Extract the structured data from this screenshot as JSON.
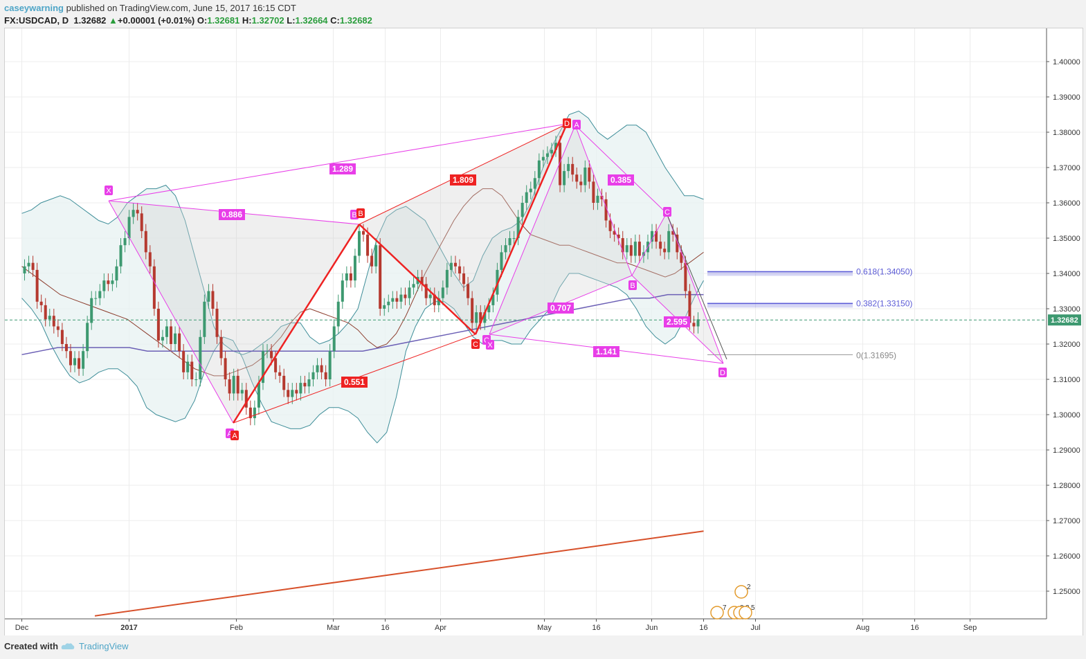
{
  "header": {
    "author": "caseywarning",
    "published": " published on TradingView.com, June 15, 2017 16:15 CDT",
    "symbol": "FX:USDCAD, D",
    "last": "1.32682",
    "change": "+0.00001 (+0.01%)",
    "o_label": "O:",
    "o": "1.32681",
    "h_label": "H:",
    "h": "1.32702",
    "l_label": "L:",
    "l": "1.32664",
    "c_label": "C:",
    "c": "1.32682"
  },
  "footer": {
    "created": "Created with",
    "brand": "TradingView"
  },
  "colors": {
    "up": "#3d9970",
    "down": "#b5392f",
    "harmonic": "#e83ee8",
    "red_pattern": "#ee2222",
    "bb": "#3d8d98",
    "bb_mid": "#8b3a2a",
    "ma_blue": "#6b5fb5",
    "ma_red": "#d7502a",
    "fib": "#5b5bd6",
    "price_tag": "#3d9970"
  },
  "chart_data": {
    "type": "candlestick",
    "x_labels": [
      "Dec",
      "2017",
      "Feb",
      "Mar",
      "16",
      "Apr",
      "May",
      "16",
      "Jun",
      "16",
      "Jul",
      "Aug",
      "16",
      "Sep"
    ],
    "x_dates": [
      "2016-12-01",
      "2017-01-01",
      "2017-02-01",
      "2017-03-01",
      "2017-03-16",
      "2017-04-01",
      "2017-05-01",
      "2017-05-16",
      "2017-06-01",
      "2017-06-16",
      "2017-07-01",
      "2017-08-01",
      "2017-08-16",
      "2017-09-01"
    ],
    "y_ticks": [
      "1.40000",
      "1.39000",
      "1.38000",
      "1.37000",
      "1.36000",
      "1.35000",
      "1.34000",
      "1.33000",
      "1.32000",
      "1.31000",
      "1.30000",
      "1.29000",
      "1.28000",
      "1.27000",
      "1.26000",
      "1.25000"
    ],
    "ylim": [
      1.2425,
      1.4115
    ],
    "current_price": "1.32682",
    "candles_close": [
      1.342,
      1.343,
      1.341,
      1.332,
      1.331,
      1.327,
      1.328,
      1.325,
      1.324,
      1.32,
      1.318,
      1.314,
      1.316,
      1.313,
      1.318,
      1.326,
      1.333,
      1.333,
      1.335,
      1.338,
      1.337,
      1.338,
      1.342,
      1.348,
      1.35,
      1.356,
      1.358,
      1.357,
      1.352,
      1.346,
      1.342,
      1.33,
      1.321,
      1.322,
      1.325,
      1.32,
      1.323,
      1.318,
      1.312,
      1.315,
      1.31,
      1.31,
      1.322,
      1.332,
      1.335,
      1.33,
      1.322,
      1.316,
      1.31,
      1.306,
      1.311,
      1.306,
      1.307,
      1.302,
      1.299,
      1.302,
      1.309,
      1.318,
      1.318,
      1.316,
      1.312,
      1.311,
      1.307,
      1.305,
      1.307,
      1.306,
      1.309,
      1.308,
      1.31,
      1.312,
      1.314,
      1.312,
      1.31,
      1.318,
      1.325,
      1.332,
      1.338,
      1.34,
      1.338,
      1.345,
      1.352,
      1.351,
      1.345,
      1.342,
      1.348,
      1.33,
      1.331,
      1.332,
      1.333,
      1.332,
      1.334,
      1.333,
      1.336,
      1.337,
      1.339,
      1.337,
      1.333,
      1.334,
      1.331,
      1.333,
      1.336,
      1.341,
      1.343,
      1.342,
      1.34,
      1.337,
      1.333,
      1.326,
      1.329,
      1.326,
      1.329,
      1.331,
      1.334,
      1.341,
      1.346,
      1.348,
      1.35,
      1.35,
      1.356,
      1.36,
      1.363,
      1.364,
      1.367,
      1.372,
      1.373,
      1.374,
      1.375,
      1.377,
      1.365,
      1.369,
      1.371,
      1.368,
      1.366,
      1.365,
      1.37,
      1.366,
      1.36,
      1.362,
      1.361,
      1.355,
      1.352,
      1.351,
      1.35,
      1.346,
      1.348,
      1.345,
      1.349,
      1.345,
      1.346,
      1.349,
      1.352,
      1.349,
      1.347,
      1.346,
      1.352,
      1.351,
      1.346,
      1.343,
      1.335,
      1.326,
      1.325,
      1.327
    ],
    "candles_open": [
      1.34,
      1.342,
      1.343,
      1.341,
      1.332,
      1.331,
      1.327,
      1.328,
      1.325,
      1.324,
      1.32,
      1.318,
      1.314,
      1.316,
      1.313,
      1.318,
      1.326,
      1.333,
      1.333,
      1.335,
      1.338,
      1.337,
      1.338,
      1.342,
      1.348,
      1.35,
      1.356,
      1.358,
      1.357,
      1.352,
      1.346,
      1.342,
      1.33,
      1.321,
      1.322,
      1.325,
      1.32,
      1.323,
      1.318,
      1.312,
      1.315,
      1.31,
      1.31,
      1.322,
      1.332,
      1.335,
      1.33,
      1.322,
      1.316,
      1.31,
      1.306,
      1.311,
      1.306,
      1.307,
      1.302,
      1.299,
      1.302,
      1.309,
      1.318,
      1.318,
      1.316,
      1.312,
      1.311,
      1.307,
      1.305,
      1.307,
      1.306,
      1.309,
      1.308,
      1.31,
      1.312,
      1.314,
      1.312,
      1.31,
      1.318,
      1.325,
      1.332,
      1.338,
      1.34,
      1.338,
      1.345,
      1.352,
      1.351,
      1.345,
      1.342,
      1.348,
      1.33,
      1.331,
      1.332,
      1.333,
      1.332,
      1.334,
      1.333,
      1.336,
      1.337,
      1.339,
      1.337,
      1.333,
      1.334,
      1.331,
      1.333,
      1.336,
      1.341,
      1.343,
      1.342,
      1.34,
      1.337,
      1.333,
      1.326,
      1.329,
      1.326,
      1.329,
      1.331,
      1.334,
      1.341,
      1.346,
      1.348,
      1.35,
      1.35,
      1.356,
      1.36,
      1.363,
      1.364,
      1.367,
      1.372,
      1.373,
      1.374,
      1.375,
      1.377,
      1.365,
      1.369,
      1.371,
      1.368,
      1.366,
      1.365,
      1.37,
      1.366,
      1.36,
      1.362,
      1.361,
      1.355,
      1.352,
      1.351,
      1.35,
      1.346,
      1.348,
      1.345,
      1.349,
      1.345,
      1.346,
      1.349,
      1.352,
      1.349,
      1.347,
      1.346,
      1.352,
      1.351,
      1.346,
      1.343,
      1.335,
      1.326,
      1.325
    ],
    "bb_upper": [
      1.357,
      1.358,
      1.36,
      1.361,
      1.362,
      1.361,
      1.359,
      1.357,
      1.355,
      1.354,
      1.356,
      1.36,
      1.362,
      1.364,
      1.364,
      1.365,
      1.362,
      1.355,
      1.345,
      1.335,
      1.325,
      1.32,
      1.318,
      1.317,
      1.318,
      1.32,
      1.322,
      1.325,
      1.326,
      1.326,
      1.322,
      1.32,
      1.321,
      1.323,
      1.326,
      1.33,
      1.34,
      1.35,
      1.356,
      1.358,
      1.359,
      1.357,
      1.355,
      1.35,
      1.345,
      1.34,
      1.336,
      1.338,
      1.345,
      1.35,
      1.352,
      1.353,
      1.355,
      1.36,
      1.368,
      1.375,
      1.38,
      1.385,
      1.386,
      1.384,
      1.38,
      1.378,
      1.38,
      1.382,
      1.382,
      1.38,
      1.375,
      1.37,
      1.366,
      1.362,
      1.362,
      1.361
    ],
    "bb_lower": [
      1.333,
      1.33,
      1.326,
      1.32,
      1.315,
      1.311,
      1.309,
      1.31,
      1.312,
      1.313,
      1.313,
      1.311,
      1.308,
      1.302,
      1.3,
      1.299,
      1.298,
      1.299,
      1.304,
      1.312,
      1.318,
      1.322,
      1.321,
      1.316,
      1.309,
      1.303,
      1.298,
      1.297,
      1.296,
      1.296,
      1.297,
      1.3,
      1.302,
      1.302,
      1.301,
      1.299,
      1.295,
      1.292,
      1.295,
      1.305,
      1.318,
      1.325,
      1.33,
      1.332,
      1.332,
      1.33,
      1.326,
      1.322,
      1.32,
      1.321,
      1.321,
      1.32,
      1.32,
      1.324,
      1.327,
      1.33,
      1.336,
      1.34,
      1.34,
      1.339,
      1.338,
      1.337,
      1.336,
      1.334,
      1.33,
      1.325,
      1.322,
      1.32,
      1.322,
      1.327,
      1.333,
      1.338
    ],
    "bb_mid": [
      1.342,
      1.34,
      1.338,
      1.336,
      1.334,
      1.333,
      1.332,
      1.331,
      1.33,
      1.329,
      1.328,
      1.327,
      1.325,
      1.323,
      1.321,
      1.319,
      1.317,
      1.315,
      1.313,
      1.312,
      1.311,
      1.311,
      1.312,
      1.313,
      1.314,
      1.316,
      1.319,
      1.322,
      1.326,
      1.329,
      1.33,
      1.329,
      1.328,
      1.327,
      1.326,
      1.324,
      1.321,
      1.319,
      1.32,
      1.323,
      1.328,
      1.334,
      1.34,
      1.345,
      1.35,
      1.355,
      1.359,
      1.362,
      1.364,
      1.364,
      1.362,
      1.358,
      1.354,
      1.351,
      1.35,
      1.349,
      1.348,
      1.348,
      1.347,
      1.346,
      1.345,
      1.344,
      1.343,
      1.343,
      1.342,
      1.341,
      1.34,
      1.339,
      1.34,
      1.342,
      1.344,
      1.346
    ],
    "ma_blue": [
      1.317,
      1.318,
      1.319,
      1.319,
      1.319,
      1.319,
      1.319,
      1.318,
      1.318,
      1.318,
      1.318,
      1.318,
      1.318,
      1.318,
      1.318,
      1.318,
      1.318,
      1.318,
      1.318,
      1.318,
      1.319,
      1.32,
      1.321,
      1.322,
      1.323,
      1.324,
      1.325,
      1.326,
      1.327,
      1.328,
      1.329,
      1.33,
      1.331,
      1.332,
      1.333,
      1.333,
      1.334,
      1.334,
      1.334
    ],
    "ma_red": [
      1.243,
      1.247,
      1.251,
      1.255,
      1.259,
      1.263,
      1.267
    ],
    "fib_levels": [
      {
        "label": "0.618(1.34050)",
        "value": 1.3405
      },
      {
        "label": "0.382(1.33150)",
        "value": 1.3315
      },
      {
        "label": "0(1.31695)",
        "value": 1.31695
      }
    ],
    "pattern_labels": [
      {
        "text": "X"
      },
      {
        "text": "A"
      },
      {
        "text": "A"
      },
      {
        "text": "B"
      },
      {
        "text": "B"
      },
      {
        "text": "C"
      },
      {
        "text": "C"
      },
      {
        "text": "X"
      },
      {
        "text": "D"
      },
      {
        "text": "A"
      },
      {
        "text": "B"
      },
      {
        "text": "C"
      },
      {
        "text": "D"
      }
    ],
    "ratio_labels": [
      {
        "text": "1.289"
      },
      {
        "text": "0.886"
      },
      {
        "text": "1.809"
      },
      {
        "text": "0.551"
      },
      {
        "text": "0.385"
      },
      {
        "text": "0.707"
      },
      {
        "text": "2.595"
      },
      {
        "text": "1.141"
      }
    ],
    "event_badges": [
      "2",
      "7",
      "3",
      "3",
      "5"
    ]
  }
}
